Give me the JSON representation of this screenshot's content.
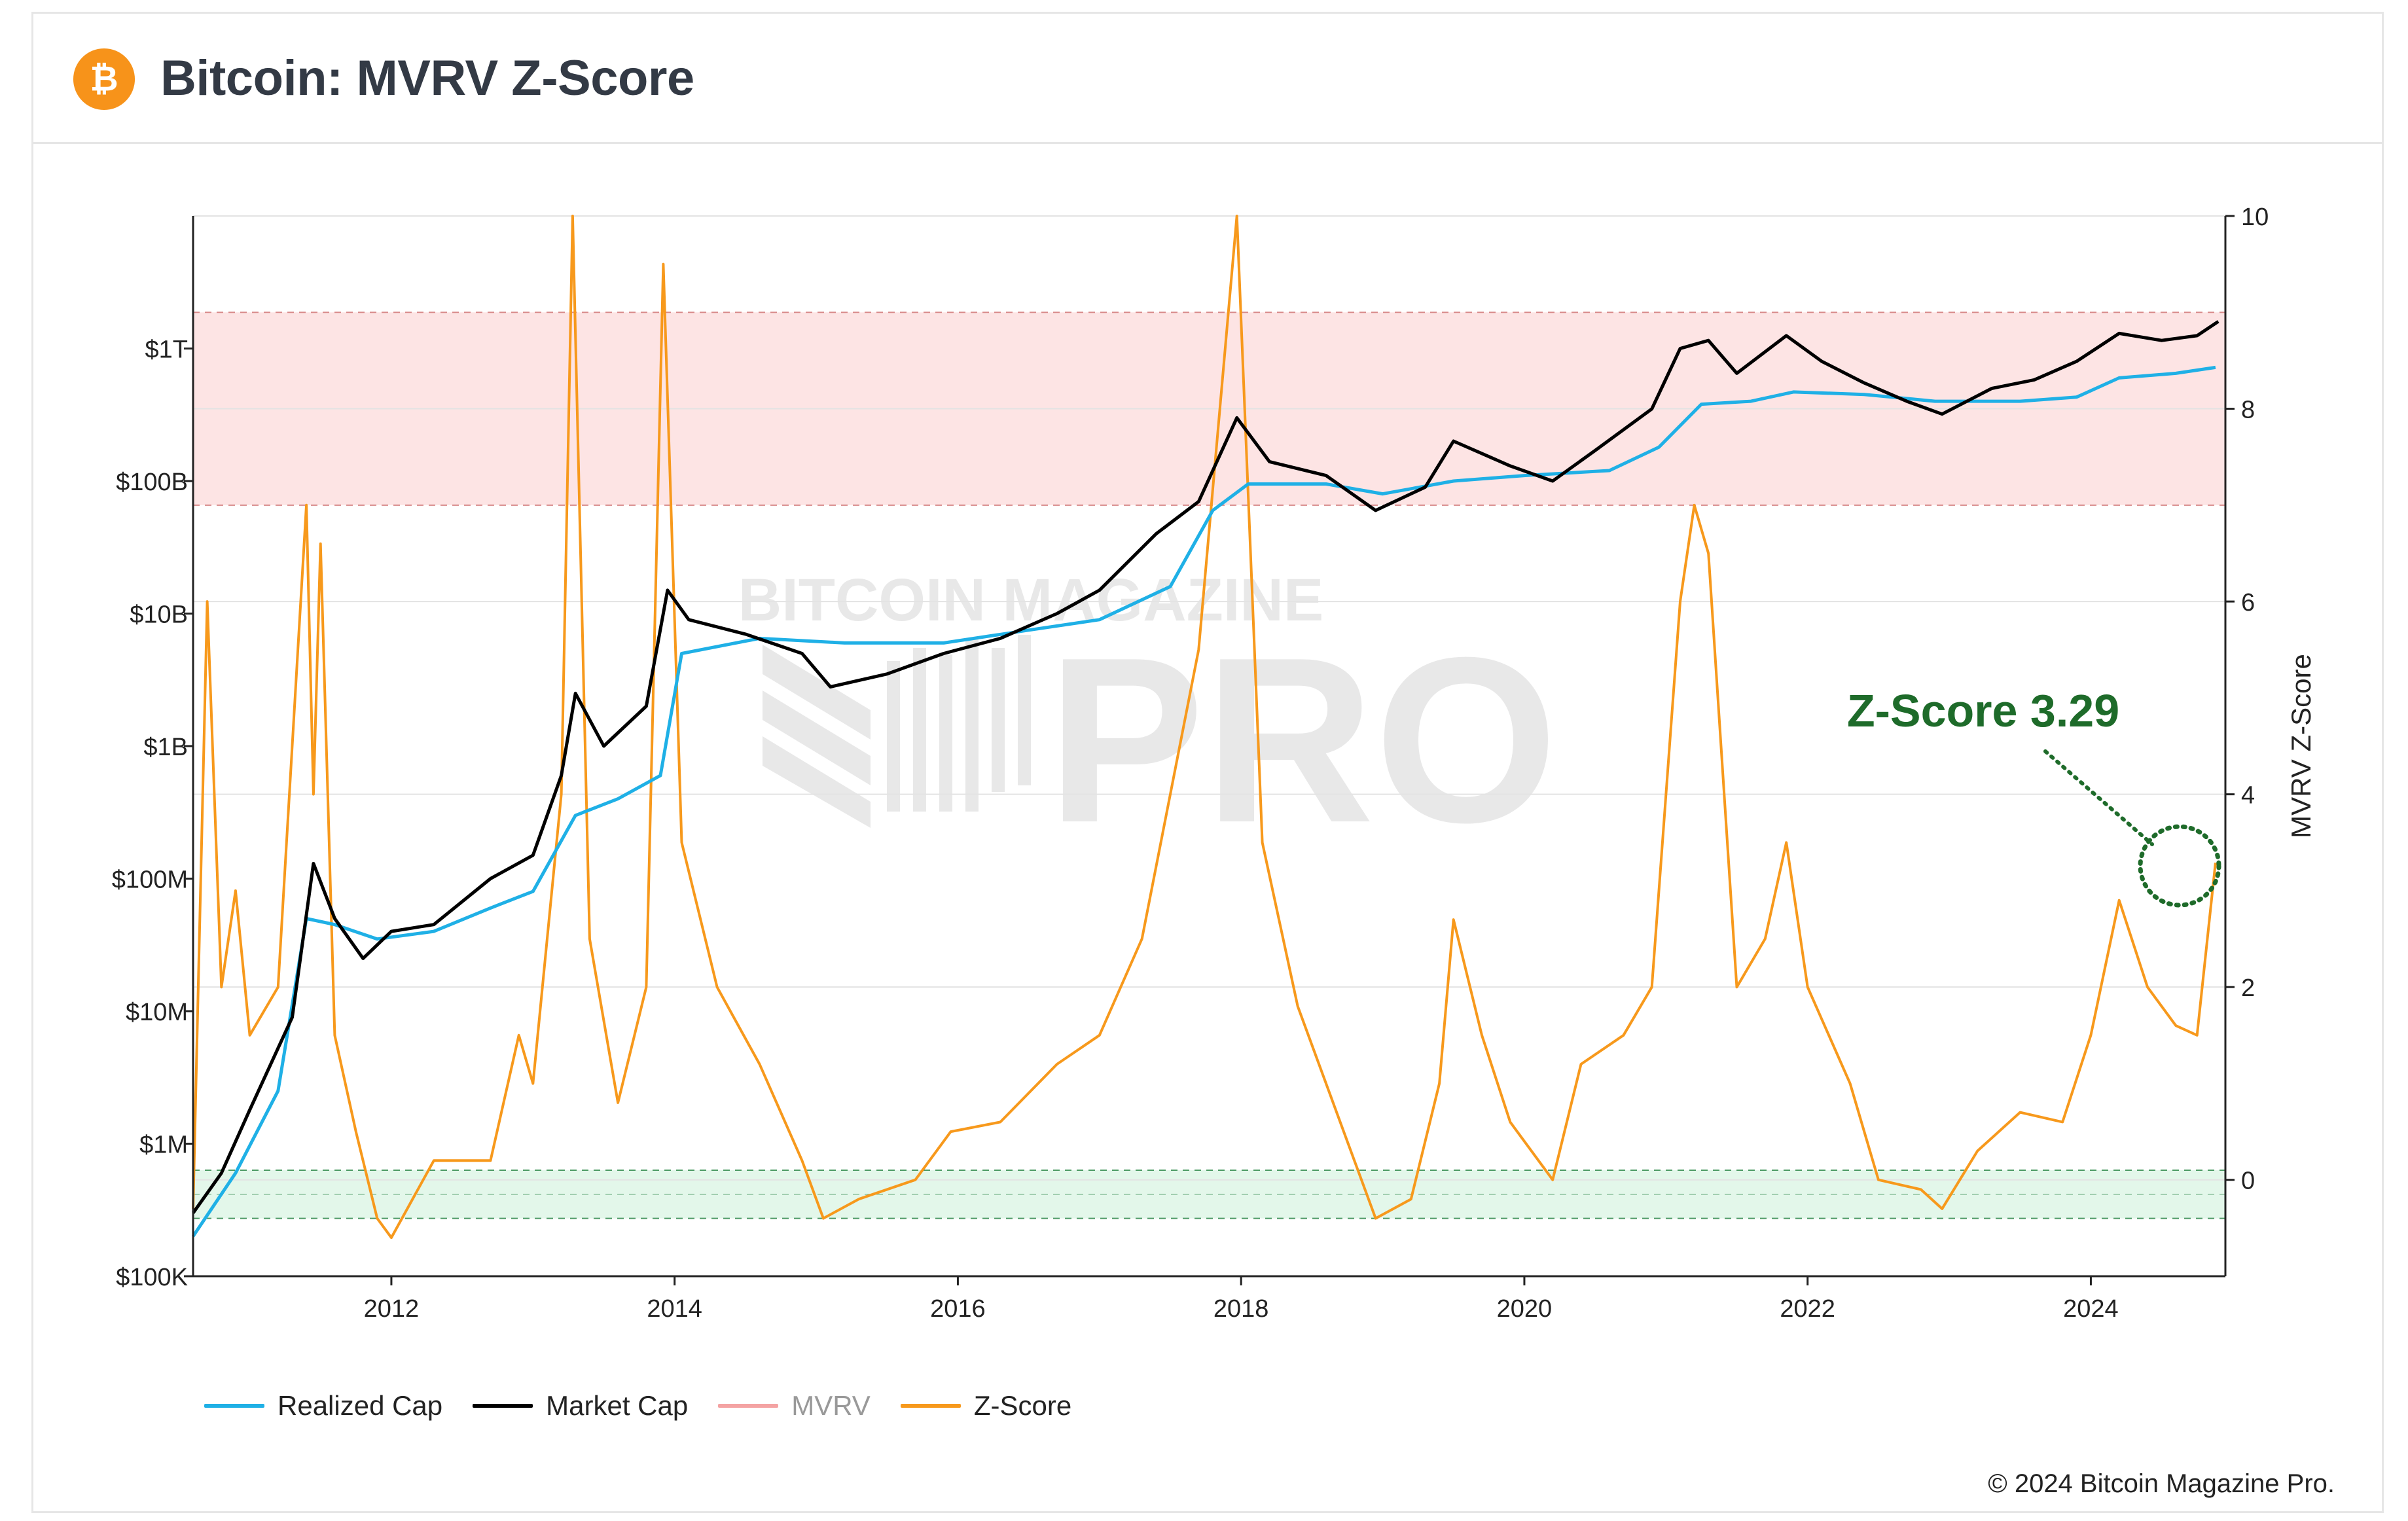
{
  "header": {
    "title": "Bitcoin: MVRV Z-Score",
    "logo_glyph": "₿",
    "logo_color": "#f7931a"
  },
  "watermark": {
    "line1": "BITCOIN MAGAZINE",
    "line2": "PRO"
  },
  "annotation": {
    "text": "Z-Score 3.29",
    "color": "#1e6b2a"
  },
  "legend": [
    {
      "label": "Realized Cap",
      "color": "#1fb0e6",
      "dim": false
    },
    {
      "label": "Market Cap",
      "color": "#000000",
      "dim": false
    },
    {
      "label": "MVRV",
      "color": "#f4a3a3",
      "dim": true
    },
    {
      "label": "Z-Score",
      "color": "#f7991c",
      "dim": false
    }
  ],
  "footer": {
    "copyright": "© 2024 Bitcoin Magazine Pro."
  },
  "chart_data": {
    "type": "line",
    "title": "Bitcoin: MVRV Z-Score",
    "x_ticks": [
      "2012",
      "2014",
      "2016",
      "2018",
      "2020",
      "2022",
      "2024"
    ],
    "x_range": [
      2010.6,
      2024.95
    ],
    "left_axis": {
      "scale": "log",
      "ticks": [
        "$100K",
        "$1M",
        "$10M",
        "$100M",
        "$1B",
        "$10B",
        "$100B",
        "$1T"
      ],
      "range_usd": [
        100000,
        10000000000000
      ]
    },
    "right_axis": {
      "label": "MVRV Z-Score",
      "ticks": [
        "0",
        "2",
        "4",
        "6",
        "8",
        "10"
      ],
      "range": [
        -1,
        10
      ]
    },
    "bands": [
      {
        "name": "overvalued",
        "z_from": 7,
        "z_to": 9,
        "color": "#fde4e4"
      },
      {
        "name": "undervalued",
        "z_from": -0.4,
        "z_to": 0.1,
        "color": "#e3f7ea"
      }
    ],
    "series": [
      {
        "name": "Market Cap",
        "axis": "left",
        "color": "#000000",
        "points": [
          [
            2010.6,
            300000
          ],
          [
            2010.8,
            600000
          ],
          [
            2011.0,
            1800000
          ],
          [
            2011.3,
            9000000
          ],
          [
            2011.45,
            130000000
          ],
          [
            2011.6,
            50000000
          ],
          [
            2011.8,
            25000000
          ],
          [
            2012.0,
            40000000
          ],
          [
            2012.3,
            45000000
          ],
          [
            2012.7,
            100000000
          ],
          [
            2013.0,
            150000000
          ],
          [
            2013.2,
            600000000
          ],
          [
            2013.3,
            2500000000
          ],
          [
            2013.5,
            1000000000
          ],
          [
            2013.8,
            2000000000
          ],
          [
            2013.95,
            15000000000
          ],
          [
            2014.1,
            9000000000
          ],
          [
            2014.5,
            7000000000
          ],
          [
            2014.9,
            5000000000
          ],
          [
            2015.1,
            2800000000
          ],
          [
            2015.5,
            3500000000
          ],
          [
            2015.9,
            5000000000
          ],
          [
            2016.3,
            6500000000
          ],
          [
            2016.7,
            10000000000
          ],
          [
            2017.0,
            15000000000
          ],
          [
            2017.4,
            40000000000
          ],
          [
            2017.7,
            70000000000
          ],
          [
            2017.97,
            300000000000
          ],
          [
            2018.2,
            140000000000
          ],
          [
            2018.6,
            110000000000
          ],
          [
            2018.95,
            60000000000
          ],
          [
            2019.3,
            90000000000
          ],
          [
            2019.5,
            200000000000
          ],
          [
            2019.9,
            130000000000
          ],
          [
            2020.2,
            100000000000
          ],
          [
            2020.5,
            170000000000
          ],
          [
            2020.9,
            350000000000
          ],
          [
            2021.1,
            1000000000000
          ],
          [
            2021.3,
            1150000000000
          ],
          [
            2021.5,
            650000000000
          ],
          [
            2021.85,
            1250000000000
          ],
          [
            2022.1,
            800000000000
          ],
          [
            2022.4,
            550000000000
          ],
          [
            2022.7,
            400000000000
          ],
          [
            2022.95,
            320000000000
          ],
          [
            2023.3,
            500000000000
          ],
          [
            2023.6,
            580000000000
          ],
          [
            2023.9,
            800000000000
          ],
          [
            2024.2,
            1300000000000
          ],
          [
            2024.5,
            1150000000000
          ],
          [
            2024.75,
            1250000000000
          ],
          [
            2024.9,
            1600000000000
          ]
        ]
      },
      {
        "name": "Realized Cap",
        "axis": "left",
        "color": "#1fb0e6",
        "points": [
          [
            2010.6,
            200000
          ],
          [
            2010.9,
            600000
          ],
          [
            2011.2,
            2500000
          ],
          [
            2011.4,
            50000000
          ],
          [
            2011.6,
            45000000
          ],
          [
            2011.9,
            35000000
          ],
          [
            2012.3,
            40000000
          ],
          [
            2012.7,
            60000000
          ],
          [
            2013.0,
            80000000
          ],
          [
            2013.3,
            300000000
          ],
          [
            2013.6,
            400000000
          ],
          [
            2013.9,
            600000000
          ],
          [
            2014.05,
            5000000000
          ],
          [
            2014.6,
            6500000000
          ],
          [
            2015.2,
            6000000000
          ],
          [
            2015.9,
            6000000000
          ],
          [
            2016.5,
            7500000000
          ],
          [
            2017.0,
            9000000000
          ],
          [
            2017.5,
            16000000000
          ],
          [
            2017.8,
            60000000000
          ],
          [
            2018.05,
            95000000000
          ],
          [
            2018.6,
            95000000000
          ],
          [
            2019.0,
            80000000000
          ],
          [
            2019.5,
            100000000000
          ],
          [
            2020.0,
            110000000000
          ],
          [
            2020.6,
            120000000000
          ],
          [
            2020.95,
            180000000000
          ],
          [
            2021.25,
            380000000000
          ],
          [
            2021.6,
            400000000000
          ],
          [
            2021.9,
            470000000000
          ],
          [
            2022.4,
            450000000000
          ],
          [
            2022.9,
            400000000000
          ],
          [
            2023.5,
            400000000000
          ],
          [
            2023.9,
            430000000000
          ],
          [
            2024.2,
            600000000000
          ],
          [
            2024.6,
            650000000000
          ],
          [
            2024.88,
            720000000000
          ]
        ]
      },
      {
        "name": "Z-Score",
        "axis": "right",
        "color": "#f7991c",
        "points": [
          [
            2010.6,
            -0.3
          ],
          [
            2010.7,
            6.0
          ],
          [
            2010.8,
            2.0
          ],
          [
            2010.9,
            3.0
          ],
          [
            2011.0,
            1.5
          ],
          [
            2011.2,
            2.0
          ],
          [
            2011.4,
            7.0
          ],
          [
            2011.45,
            4.0
          ],
          [
            2011.5,
            6.6
          ],
          [
            2011.6,
            1.5
          ],
          [
            2011.75,
            0.5
          ],
          [
            2011.9,
            -0.4
          ],
          [
            2012.0,
            -0.6
          ],
          [
            2012.3,
            0.2
          ],
          [
            2012.7,
            0.2
          ],
          [
            2012.9,
            1.5
          ],
          [
            2013.0,
            1.0
          ],
          [
            2013.2,
            4.0
          ],
          [
            2013.28,
            10.0
          ],
          [
            2013.4,
            2.5
          ],
          [
            2013.6,
            0.8
          ],
          [
            2013.8,
            2.0
          ],
          [
            2013.92,
            9.5
          ],
          [
            2014.05,
            3.5
          ],
          [
            2014.3,
            2.0
          ],
          [
            2014.6,
            1.2
          ],
          [
            2014.9,
            0.2
          ],
          [
            2015.05,
            -0.4
          ],
          [
            2015.3,
            -0.2
          ],
          [
            2015.7,
            0.0
          ],
          [
            2015.95,
            0.5
          ],
          [
            2016.3,
            0.6
          ],
          [
            2016.7,
            1.2
          ],
          [
            2017.0,
            1.5
          ],
          [
            2017.3,
            2.5
          ],
          [
            2017.5,
            4.0
          ],
          [
            2017.7,
            5.5
          ],
          [
            2017.97,
            10.0
          ],
          [
            2018.15,
            3.5
          ],
          [
            2018.4,
            1.8
          ],
          [
            2018.7,
            0.6
          ],
          [
            2018.95,
            -0.4
          ],
          [
            2019.2,
            -0.2
          ],
          [
            2019.4,
            1.0
          ],
          [
            2019.5,
            2.7
          ],
          [
            2019.7,
            1.5
          ],
          [
            2019.9,
            0.6
          ],
          [
            2020.2,
            0.0
          ],
          [
            2020.4,
            1.2
          ],
          [
            2020.7,
            1.5
          ],
          [
            2020.9,
            2.0
          ],
          [
            2021.1,
            6.0
          ],
          [
            2021.2,
            7.0
          ],
          [
            2021.3,
            6.5
          ],
          [
            2021.5,
            2.0
          ],
          [
            2021.7,
            2.5
          ],
          [
            2021.85,
            3.5
          ],
          [
            2022.0,
            2.0
          ],
          [
            2022.3,
            1.0
          ],
          [
            2022.5,
            0.0
          ],
          [
            2022.8,
            -0.1
          ],
          [
            2022.95,
            -0.3
          ],
          [
            2023.2,
            0.3
          ],
          [
            2023.5,
            0.7
          ],
          [
            2023.8,
            0.6
          ],
          [
            2024.0,
            1.5
          ],
          [
            2024.2,
            2.9
          ],
          [
            2024.4,
            2.0
          ],
          [
            2024.6,
            1.6
          ],
          [
            2024.75,
            1.5
          ],
          [
            2024.88,
            3.29
          ]
        ]
      }
    ],
    "current_z_score": 3.29
  }
}
